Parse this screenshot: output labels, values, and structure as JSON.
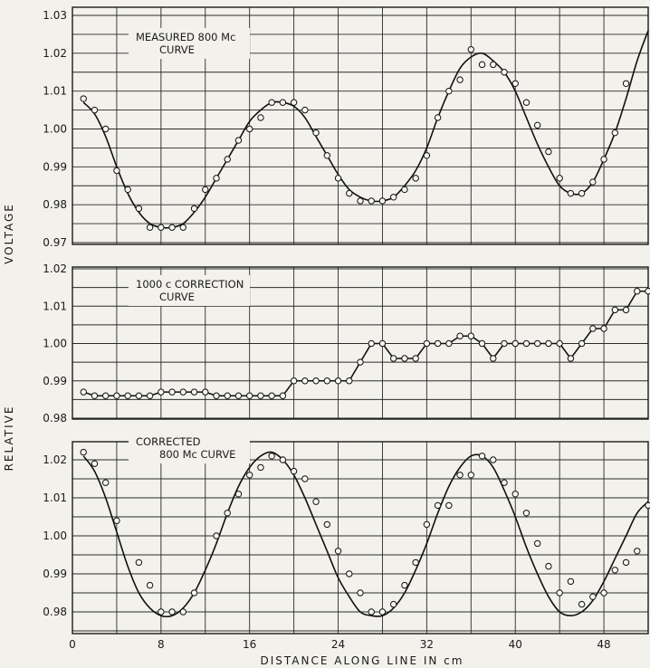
{
  "chart_data": [
    {
      "type": "scatter",
      "panel": "top",
      "annotation": [
        "MEASURED  800 Mc",
        "CURVE"
      ],
      "ylim": [
        0.97,
        1.03
      ],
      "yticks": [
        "1.03",
        "1.02",
        "1.01",
        "1.00",
        "0.99",
        "0.98",
        "0.97"
      ],
      "xlim": [
        0,
        52
      ],
      "series": [
        {
          "points": [
            [
              1,
              1.008
            ],
            [
              2,
              1.005
            ],
            [
              3,
              1.0
            ],
            [
              4,
              0.989
            ],
            [
              5,
              0.984
            ],
            [
              6,
              0.979
            ],
            [
              7,
              0.974
            ],
            [
              8,
              0.974
            ],
            [
              9,
              0.974
            ],
            [
              10,
              0.974
            ],
            [
              11,
              0.979
            ],
            [
              12,
              0.984
            ],
            [
              13,
              0.987
            ],
            [
              14,
              0.992
            ],
            [
              15,
              0.997
            ],
            [
              16,
              1.0
            ],
            [
              17,
              1.003
            ],
            [
              18,
              1.007
            ],
            [
              19,
              1.007
            ],
            [
              20,
              1.007
            ],
            [
              21,
              1.005
            ],
            [
              22,
              0.999
            ],
            [
              23,
              0.993
            ],
            [
              24,
              0.987
            ],
            [
              25,
              0.983
            ],
            [
              26,
              0.981
            ],
            [
              27,
              0.981
            ],
            [
              28,
              0.981
            ],
            [
              29,
              0.982
            ],
            [
              30,
              0.984
            ],
            [
              31,
              0.987
            ],
            [
              32,
              0.993
            ],
            [
              33,
              1.003
            ],
            [
              34,
              1.01
            ],
            [
              35,
              1.013
            ],
            [
              36,
              1.021
            ],
            [
              37,
              1.017
            ],
            [
              38,
              1.017
            ],
            [
              39,
              1.015
            ],
            [
              40,
              1.012
            ],
            [
              41,
              1.007
            ],
            [
              42,
              1.001
            ],
            [
              43,
              0.994
            ],
            [
              44,
              0.987
            ],
            [
              45,
              0.983
            ],
            [
              46,
              0.983
            ],
            [
              47,
              0.986
            ],
            [
              48,
              0.992
            ],
            [
              49,
              0.999
            ],
            [
              50,
              1.012
            ]
          ],
          "curve": [
            [
              1,
              1.007
            ],
            [
              2,
              1.004
            ],
            [
              3,
              0.998
            ],
            [
              4,
              0.99
            ],
            [
              5,
              0.983
            ],
            [
              6,
              0.978
            ],
            [
              7,
              0.975
            ],
            [
              8,
              0.974
            ],
            [
              9,
              0.974
            ],
            [
              10,
              0.975
            ],
            [
              11,
              0.978
            ],
            [
              12,
              0.982
            ],
            [
              13,
              0.987
            ],
            [
              14,
              0.992
            ],
            [
              15,
              0.997
            ],
            [
              16,
              1.002
            ],
            [
              17,
              1.005
            ],
            [
              18,
              1.007
            ],
            [
              19,
              1.007
            ],
            [
              20,
              1.006
            ],
            [
              21,
              1.003
            ],
            [
              22,
              0.998
            ],
            [
              23,
              0.993
            ],
            [
              24,
              0.988
            ],
            [
              25,
              0.984
            ],
            [
              26,
              0.982
            ],
            [
              27,
              0.981
            ],
            [
              28,
              0.981
            ],
            [
              29,
              0.982
            ],
            [
              30,
              0.985
            ],
            [
              31,
              0.989
            ],
            [
              32,
              0.995
            ],
            [
              33,
              1.003
            ],
            [
              34,
              1.01
            ],
            [
              35,
              1.016
            ],
            [
              36,
              1.019
            ],
            [
              37,
              1.02
            ],
            [
              38,
              1.018
            ],
            [
              39,
              1.015
            ],
            [
              40,
              1.01
            ],
            [
              41,
              1.003
            ],
            [
              42,
              0.996
            ],
            [
              43,
              0.99
            ],
            [
              44,
              0.985
            ],
            [
              45,
              0.983
            ],
            [
              46,
              0.983
            ],
            [
              47,
              0.986
            ],
            [
              48,
              0.992
            ],
            [
              49,
              0.999
            ],
            [
              50,
              1.008
            ],
            [
              51,
              1.018
            ],
            [
              52,
              1.026
            ]
          ]
        }
      ]
    },
    {
      "type": "line",
      "panel": "middle",
      "annotation": [
        "1000 c  CORRECTION",
        "CURVE"
      ],
      "ylim": [
        0.98,
        1.02
      ],
      "yticks": [
        "1.02",
        "1.01",
        "1.00",
        "0.99",
        "0.98"
      ],
      "xlim": [
        0,
        52
      ],
      "series": [
        {
          "points": [
            [
              1,
              0.987
            ],
            [
              2,
              0.986
            ],
            [
              3,
              0.986
            ],
            [
              4,
              0.986
            ],
            [
              5,
              0.986
            ],
            [
              6,
              0.986
            ],
            [
              7,
              0.986
            ],
            [
              8,
              0.987
            ],
            [
              9,
              0.987
            ],
            [
              10,
              0.987
            ],
            [
              11,
              0.987
            ],
            [
              12,
              0.987
            ],
            [
              13,
              0.986
            ],
            [
              14,
              0.986
            ],
            [
              15,
              0.986
            ],
            [
              16,
              0.986
            ],
            [
              17,
              0.986
            ],
            [
              18,
              0.986
            ],
            [
              19,
              0.986
            ],
            [
              20,
              0.99
            ],
            [
              21,
              0.99
            ],
            [
              22,
              0.99
            ],
            [
              23,
              0.99
            ],
            [
              24,
              0.99
            ],
            [
              25,
              0.99
            ],
            [
              26,
              0.995
            ],
            [
              27,
              1.0
            ],
            [
              28,
              1.0
            ],
            [
              29,
              0.996
            ],
            [
              30,
              0.996
            ],
            [
              31,
              0.996
            ],
            [
              32,
              1.0
            ],
            [
              33,
              1.0
            ],
            [
              34,
              1.0
            ],
            [
              35,
              1.002
            ],
            [
              36,
              1.002
            ],
            [
              37,
              1.0
            ],
            [
              38,
              0.996
            ],
            [
              39,
              1.0
            ],
            [
              40,
              1.0
            ],
            [
              41,
              1.0
            ],
            [
              42,
              1.0
            ],
            [
              43,
              1.0
            ],
            [
              44,
              1.0
            ],
            [
              45,
              0.996
            ],
            [
              46,
              1.0
            ],
            [
              47,
              1.004
            ],
            [
              48,
              1.004
            ],
            [
              49,
              1.009
            ],
            [
              50,
              1.009
            ],
            [
              51,
              1.014
            ],
            [
              52,
              1.014
            ]
          ]
        }
      ]
    },
    {
      "type": "scatter",
      "panel": "bottom",
      "annotation": [
        "CORRECTED",
        "800 Mc  CURVE"
      ],
      "ylim": [
        0.975,
        1.025
      ],
      "yticks": [
        "1.02",
        "1.01",
        "1.00",
        "0.99",
        "0.98"
      ],
      "xlim": [
        0,
        52
      ],
      "xticks": [
        "0",
        "8",
        "16",
        "24",
        "32",
        "40",
        "48"
      ],
      "series": [
        {
          "points": [
            [
              1,
              1.022
            ],
            [
              2,
              1.019
            ],
            [
              3,
              1.014
            ],
            [
              4,
              1.004
            ],
            [
              6,
              0.993
            ],
            [
              7,
              0.987
            ],
            [
              8,
              0.98
            ],
            [
              9,
              0.98
            ],
            [
              10,
              0.98
            ],
            [
              11,
              0.985
            ],
            [
              13,
              1.0
            ],
            [
              14,
              1.006
            ],
            [
              15,
              1.011
            ],
            [
              16,
              1.016
            ],
            [
              17,
              1.018
            ],
            [
              18,
              1.021
            ],
            [
              19,
              1.02
            ],
            [
              20,
              1.017
            ],
            [
              21,
              1.015
            ],
            [
              22,
              1.009
            ],
            [
              23,
              1.003
            ],
            [
              24,
              0.996
            ],
            [
              25,
              0.99
            ],
            [
              26,
              0.985
            ],
            [
              27,
              0.98
            ],
            [
              28,
              0.98
            ],
            [
              29,
              0.982
            ],
            [
              30,
              0.987
            ],
            [
              31,
              0.993
            ],
            [
              32,
              1.003
            ],
            [
              33,
              1.008
            ],
            [
              34,
              1.008
            ],
            [
              35,
              1.016
            ],
            [
              36,
              1.016
            ],
            [
              37,
              1.021
            ],
            [
              38,
              1.02
            ],
            [
              39,
              1.014
            ],
            [
              40,
              1.011
            ],
            [
              41,
              1.006
            ],
            [
              42,
              0.998
            ],
            [
              43,
              0.992
            ],
            [
              44,
              0.985
            ],
            [
              45,
              0.988
            ],
            [
              46,
              0.982
            ],
            [
              47,
              0.984
            ],
            [
              48,
              0.985
            ],
            [
              49,
              0.991
            ],
            [
              50,
              0.993
            ],
            [
              51,
              0.996
            ],
            [
              52,
              1.008
            ]
          ],
          "curve": [
            [
              1,
              1.021
            ],
            [
              2,
              1.017
            ],
            [
              3,
              1.01
            ],
            [
              4,
              1.001
            ],
            [
              5,
              0.992
            ],
            [
              6,
              0.985
            ],
            [
              7,
              0.981
            ],
            [
              8,
              0.979
            ],
            [
              9,
              0.979
            ],
            [
              10,
              0.981
            ],
            [
              11,
              0.985
            ],
            [
              12,
              0.991
            ],
            [
              13,
              0.998
            ],
            [
              14,
              1.006
            ],
            [
              15,
              1.013
            ],
            [
              16,
              1.018
            ],
            [
              17,
              1.021
            ],
            [
              18,
              1.022
            ],
            [
              19,
              1.02
            ],
            [
              20,
              1.016
            ],
            [
              21,
              1.01
            ],
            [
              22,
              1.003
            ],
            [
              23,
              0.996
            ],
            [
              24,
              0.989
            ],
            [
              25,
              0.984
            ],
            [
              26,
              0.98
            ],
            [
              27,
              0.979
            ],
            [
              28,
              0.979
            ],
            [
              29,
              0.981
            ],
            [
              30,
              0.985
            ],
            [
              31,
              0.991
            ],
            [
              32,
              0.998
            ],
            [
              33,
              1.006
            ],
            [
              34,
              1.013
            ],
            [
              35,
              1.018
            ],
            [
              36,
              1.021
            ],
            [
              37,
              1.021
            ],
            [
              38,
              1.018
            ],
            [
              39,
              1.012
            ],
            [
              40,
              1.005
            ],
            [
              41,
              0.997
            ],
            [
              42,
              0.99
            ],
            [
              43,
              0.984
            ],
            [
              44,
              0.98
            ],
            [
              45,
              0.979
            ],
            [
              46,
              0.98
            ],
            [
              47,
              0.983
            ],
            [
              48,
              0.988
            ],
            [
              49,
              0.994
            ],
            [
              50,
              1.0
            ],
            [
              51,
              1.006
            ],
            [
              52,
              1.009
            ]
          ]
        }
      ]
    }
  ],
  "axes": {
    "ylabel_left": "VOLTAGE",
    "ylabel_right": "RELATIVE",
    "xlabel": "DISTANCE  ALONG LINE  IN cm"
  }
}
